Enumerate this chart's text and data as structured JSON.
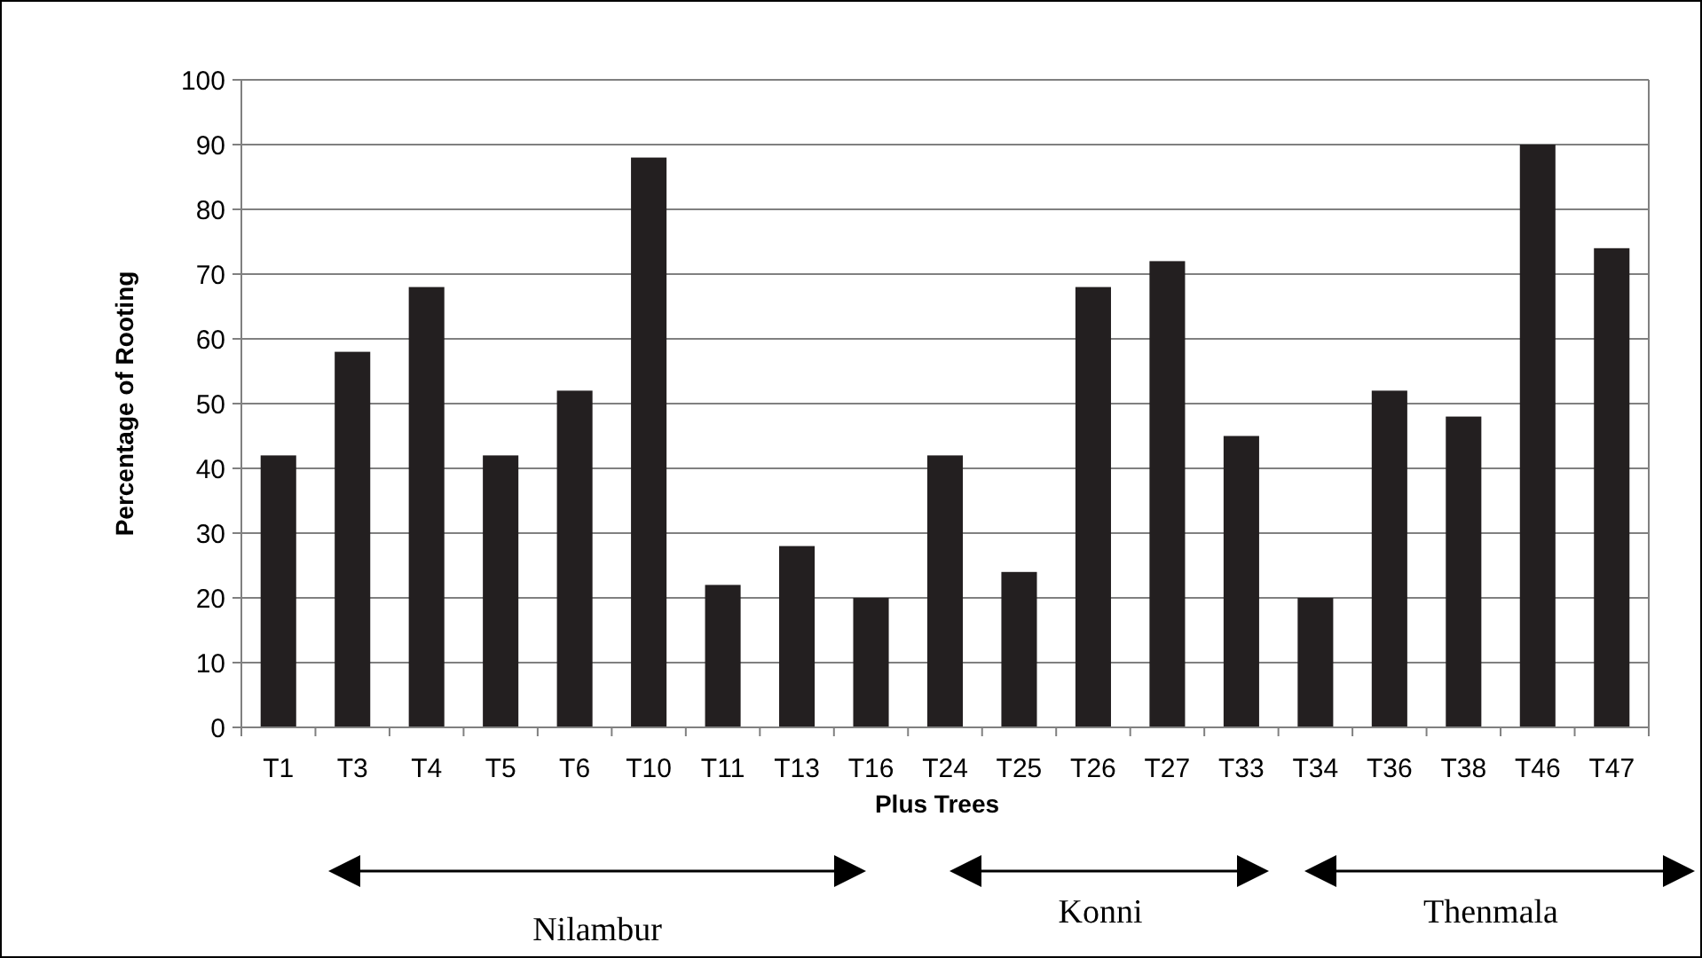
{
  "chart_data": {
    "type": "bar",
    "xlabel": "Plus Trees",
    "ylabel": "Percentage of Rooting",
    "categories": [
      "T1",
      "T3",
      "T4",
      "T5",
      "T6",
      "T10",
      "T11",
      "T13",
      "T16",
      "T24",
      "T25",
      "T26",
      "T27",
      "T33",
      "T34",
      "T36",
      "T38",
      "T46",
      "T47"
    ],
    "values": [
      42,
      58,
      68,
      42,
      52,
      88,
      22,
      28,
      20,
      42,
      24,
      68,
      72,
      45,
      20,
      52,
      48,
      90,
      74
    ],
    "color": "#231f20",
    "ylim": [
      0,
      100
    ],
    "yticks": [
      0,
      10,
      20,
      30,
      40,
      50,
      60,
      70,
      80,
      90,
      100
    ],
    "grid": "y",
    "annotations": [
      "Nilambur",
      "Konni",
      "Thenmala"
    ]
  }
}
